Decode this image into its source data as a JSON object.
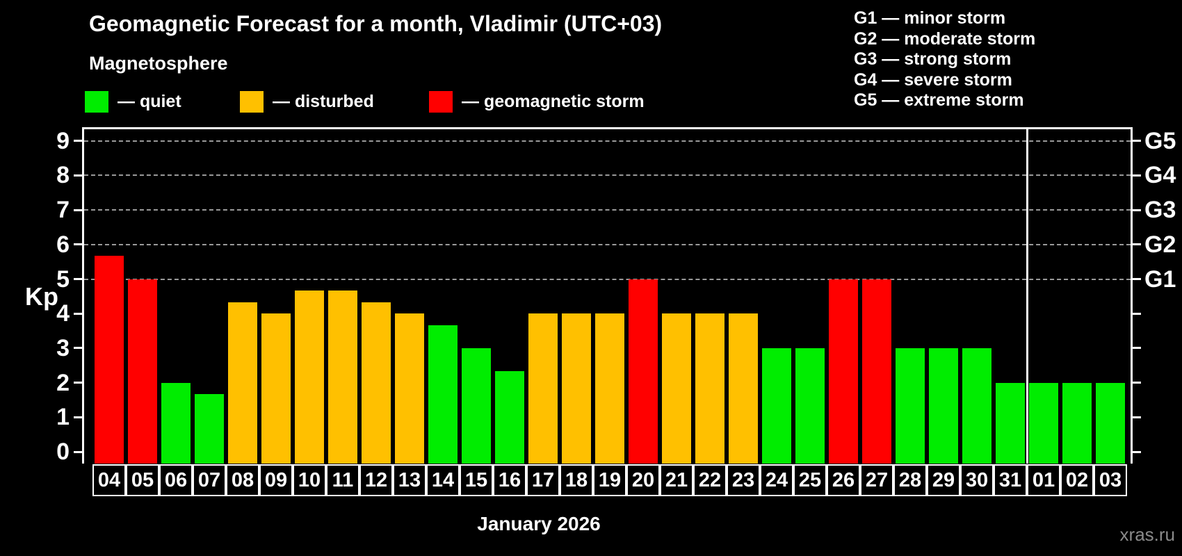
{
  "title": "Geomagnetic Forecast for a month, Vladimir (UTC+03)",
  "magnetosphere_heading": "Magnetosphere",
  "legend": {
    "items": [
      {
        "key": "quiet",
        "label": "— quiet",
        "color": "#00ed00"
      },
      {
        "key": "disturbed",
        "label": "— disturbed",
        "color": "#ffc000"
      },
      {
        "key": "storm",
        "label": "— geomagnetic storm",
        "color": "#ff0000"
      }
    ]
  },
  "g_scale_legend": [
    "G1 — minor storm",
    "G2 — moderate storm",
    "G3 — strong storm",
    "G4 — severe storm",
    "G5 — extreme storm"
  ],
  "watermark": "xras.ru",
  "chart_data": {
    "type": "bar",
    "title": "Geomagnetic Forecast for a month, Vladimir (UTC+03)",
    "ylabel": "Kp",
    "ylim": [
      0,
      9.4
    ],
    "y_ticks": [
      0,
      1,
      2,
      3,
      4,
      5,
      6,
      7,
      8,
      9
    ],
    "gridlines_at": [
      5,
      6,
      7,
      8,
      9
    ],
    "grid": "dashed horizontal lines at Kp 5-9",
    "right_axis_labels": [
      {
        "label": "G1",
        "kp": 5
      },
      {
        "label": "G2",
        "kp": 6
      },
      {
        "label": "G3",
        "kp": 7
      },
      {
        "label": "G4",
        "kp": 8
      },
      {
        "label": "G5",
        "kp": 9
      }
    ],
    "categories": [
      "04",
      "05",
      "06",
      "07",
      "08",
      "09",
      "10",
      "11",
      "12",
      "13",
      "14",
      "15",
      "16",
      "17",
      "18",
      "19",
      "20",
      "21",
      "22",
      "23",
      "24",
      "25",
      "26",
      "27",
      "28",
      "29",
      "30",
      "31",
      "01",
      "02",
      "03"
    ],
    "values": [
      5.67,
      5,
      2,
      1.67,
      4.33,
      4,
      4.67,
      4.67,
      4.33,
      4,
      3.67,
      3,
      2.33,
      4,
      4,
      4,
      5,
      4,
      4,
      4,
      3,
      3,
      5,
      5,
      3,
      3,
      3,
      2,
      2,
      2,
      2
    ],
    "statuses": [
      "storm",
      "storm",
      "quiet",
      "quiet",
      "disturbed",
      "disturbed",
      "disturbed",
      "disturbed",
      "disturbed",
      "disturbed",
      "quiet",
      "quiet",
      "quiet",
      "disturbed",
      "disturbed",
      "disturbed",
      "storm",
      "disturbed",
      "disturbed",
      "disturbed",
      "quiet",
      "quiet",
      "storm",
      "storm",
      "quiet",
      "quiet",
      "quiet",
      "quiet",
      "quiet",
      "quiet",
      "quiet"
    ],
    "status_colors": {
      "quiet": "#00ed00",
      "disturbed": "#ffc000",
      "storm": "#ff0000"
    },
    "month_label": "January 2026",
    "month_boundary_after_category": "31"
  }
}
